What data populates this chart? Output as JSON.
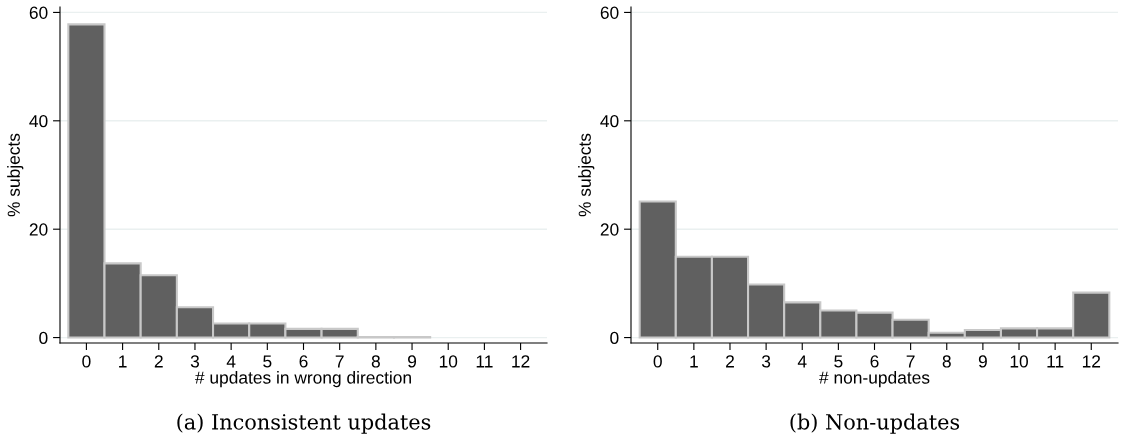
{
  "chart_data": [
    {
      "type": "histogram",
      "title": "(a) Inconsistent updates",
      "xlabel": "# updates in wrong direction",
      "ylabel": "% subjects",
      "bins": [
        -0.5,
        0.5,
        1.5,
        2.5,
        3.5,
        4.5,
        5.5,
        6.5,
        7.5,
        8.5,
        9.5,
        10.5,
        11.5,
        12.5
      ],
      "values": [
        57.8,
        13.7,
        11.5,
        5.6,
        2.6,
        2.6,
        1.6,
        1.6,
        0.1,
        0.1,
        0,
        0,
        0
      ],
      "color": "#606060",
      "xlim": [
        -0.73,
        12.73
      ],
      "xticks": [
        0,
        1,
        2,
        3,
        4,
        5,
        6,
        7,
        8,
        9,
        10,
        11,
        12
      ],
      "ylim": [
        -1,
        61
      ],
      "yticks": [
        0,
        20,
        40,
        60
      ],
      "grid": "y"
    },
    {
      "type": "histogram",
      "title": "(b) Non-updates",
      "xlabel": "# non-updates",
      "ylabel": "% subjects",
      "bins": [
        -0.5,
        0.5,
        1.5,
        2.5,
        3.5,
        4.5,
        5.5,
        6.5,
        7.5,
        8.5,
        9.5,
        10.5,
        11.5,
        12.5
      ],
      "values": [
        25.1,
        14.9,
        14.9,
        9.8,
        6.5,
        5.0,
        4.6,
        3.3,
        0.9,
        1.4,
        1.7,
        1.7,
        8.3
      ],
      "color": "#606060",
      "xlim": [
        -0.74,
        12.74
      ],
      "xticks": [
        0,
        1,
        2,
        3,
        4,
        5,
        6,
        7,
        8,
        9,
        10,
        11,
        12
      ],
      "ylim": [
        -1,
        61
      ],
      "yticks": [
        0,
        20,
        40,
        60
      ],
      "grid": "y"
    }
  ]
}
